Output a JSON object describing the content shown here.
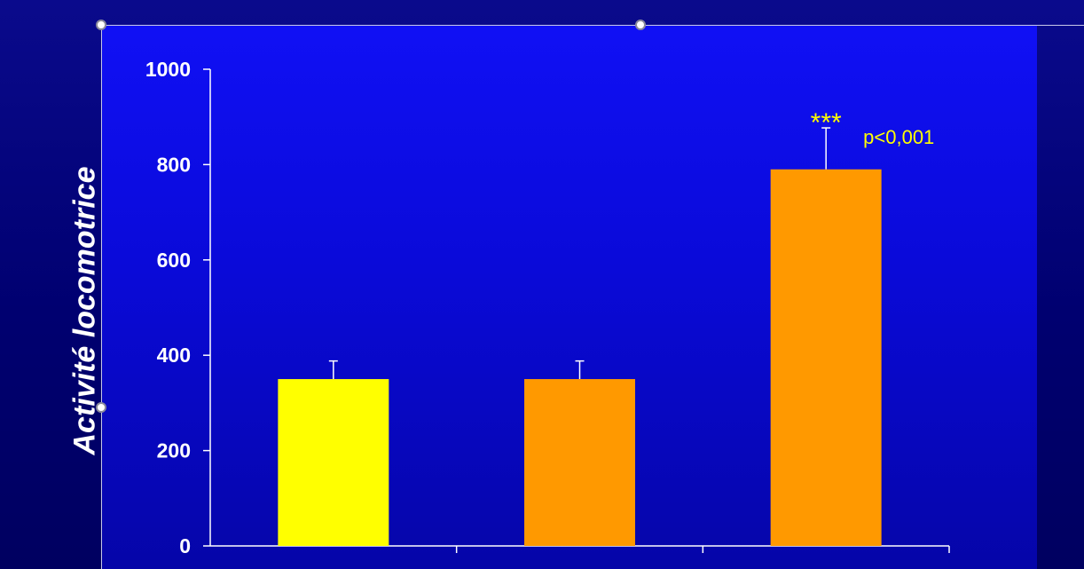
{
  "chart_data": {
    "type": "bar",
    "ylabel": "Activité locomotrice",
    "xlabel": "",
    "ylim": [
      0,
      1000
    ],
    "yticks": [
      0,
      200,
      400,
      600,
      800,
      1000
    ],
    "categories": [
      "",
      "",
      ""
    ],
    "values": [
      350,
      350,
      790
    ],
    "errors": [
      38,
      38,
      87
    ],
    "bar_colors": [
      "#ffff00",
      "#ff9900",
      "#ff9900"
    ],
    "annotations": [
      {
        "bar_index": 2,
        "stars": "***",
        "text": "p<0,001",
        "color": "#ffff00"
      }
    ],
    "grid": false,
    "legend": "none"
  },
  "colors": {
    "background": "#00006b",
    "plot_area": "#0a0ad8",
    "axis": "#ffffff"
  }
}
